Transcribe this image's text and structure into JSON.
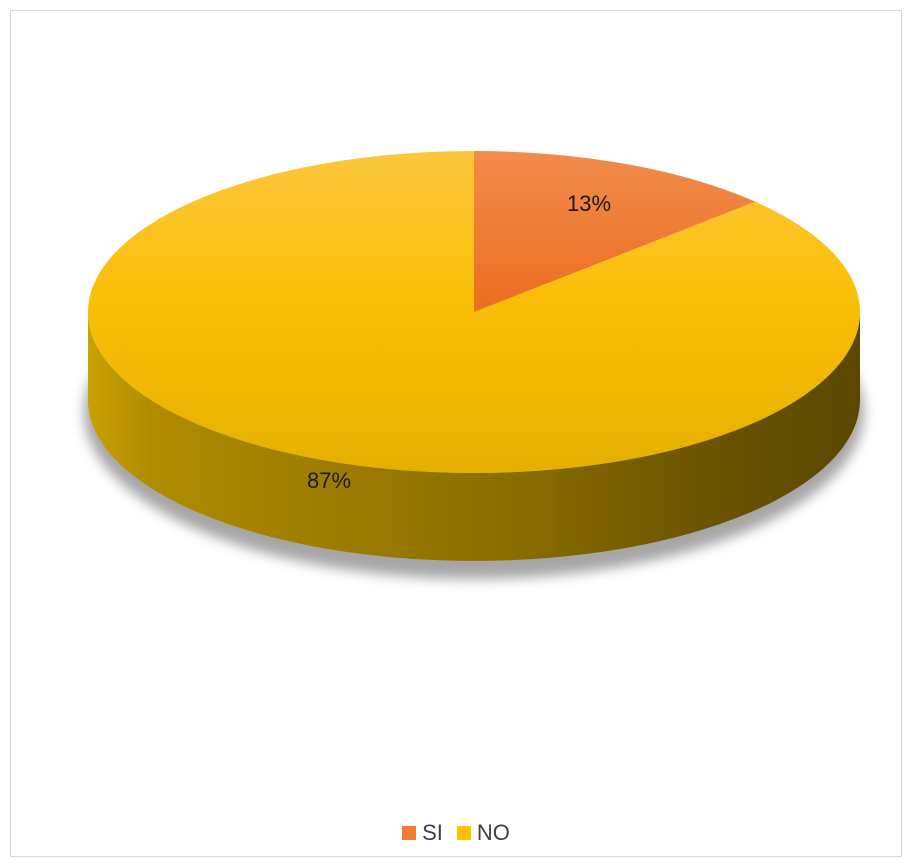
{
  "chart_data": {
    "type": "pie",
    "style": "3d",
    "categories": [
      "SI",
      "NO"
    ],
    "values": [
      13,
      87
    ],
    "labels": [
      "13%",
      "87%"
    ],
    "colors": [
      "#ED7D31",
      "#FFC000"
    ],
    "legend": "bottom",
    "title": ""
  }
}
